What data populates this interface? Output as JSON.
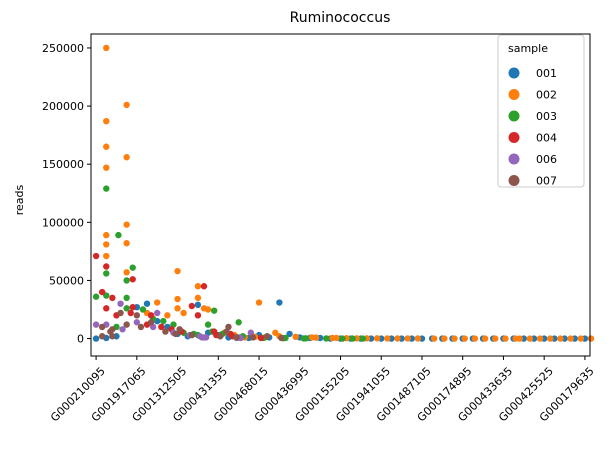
{
  "chart_data": {
    "type": "scatter",
    "style": "swarm",
    "title": "Ruminococcus",
    "xlabel": "",
    "ylabel": "reads",
    "ylim": [
      -15000,
      262000
    ],
    "yticks": [
      0,
      50000,
      100000,
      150000,
      200000,
      250000
    ],
    "ytick_labels": [
      "0",
      "50000",
      "100000",
      "150000",
      "200000",
      "250000"
    ],
    "grid": false,
    "x_category_count": 49,
    "xtick_every": 4,
    "xtick_labels": [
      "G000210095",
      "G001917065",
      "G001312505",
      "G000431355",
      "G000468015",
      "G000436995",
      "G000155205",
      "G001941055",
      "G001487105",
      "G000174895",
      "G000433635",
      "G000425525",
      "G000179635"
    ],
    "legend": {
      "title": "sample",
      "position": "top-right",
      "entries": [
        {
          "name": "001",
          "color": "#1f77b4"
        },
        {
          "name": "002",
          "color": "#ff7f0e"
        },
        {
          "name": "003",
          "color": "#2ca02c"
        },
        {
          "name": "004",
          "color": "#d62728"
        },
        {
          "name": "006",
          "color": "#9467bd"
        },
        {
          "name": "007",
          "color": "#8c564b"
        }
      ]
    },
    "series": [
      {
        "name": "001",
        "color": "#1f77b4",
        "points": [
          [
            0,
            0
          ],
          [
            1,
            500
          ],
          [
            2,
            2000
          ],
          [
            4,
            27000
          ],
          [
            5,
            30000
          ],
          [
            6,
            15000
          ],
          [
            7,
            10000
          ],
          [
            8,
            4000
          ],
          [
            9,
            2000
          ],
          [
            10,
            29000
          ],
          [
            11,
            5000
          ],
          [
            12,
            3000
          ],
          [
            13,
            1000
          ],
          [
            14,
            1000
          ],
          [
            15,
            500
          ],
          [
            16,
            3000
          ],
          [
            17,
            1000
          ],
          [
            18,
            31000
          ],
          [
            19,
            4000
          ],
          [
            20,
            1000
          ],
          [
            21,
            500
          ],
          [
            22,
            500
          ],
          [
            23,
            0
          ],
          [
            24,
            0
          ],
          [
            25,
            0
          ],
          [
            26,
            0
          ],
          [
            27,
            0
          ],
          [
            28,
            0
          ],
          [
            29,
            0
          ],
          [
            30,
            0
          ],
          [
            31,
            0
          ],
          [
            32,
            0
          ],
          [
            33,
            0
          ],
          [
            34,
            0
          ],
          [
            35,
            0
          ],
          [
            36,
            0
          ],
          [
            37,
            0
          ],
          [
            38,
            0
          ],
          [
            39,
            0
          ],
          [
            40,
            0
          ],
          [
            41,
            0
          ],
          [
            42,
            0
          ],
          [
            43,
            0
          ],
          [
            44,
            0
          ],
          [
            45,
            0
          ],
          [
            46,
            0
          ],
          [
            47,
            0
          ],
          [
            48,
            0
          ]
        ]
      },
      {
        "name": "002",
        "color": "#ff7f0e",
        "points": [
          [
            1,
            250000
          ],
          [
            1,
            187000
          ],
          [
            1,
            165000
          ],
          [
            1,
            147000
          ],
          [
            1,
            89000
          ],
          [
            1,
            81000
          ],
          [
            1,
            71000
          ],
          [
            3,
            201000
          ],
          [
            3,
            156000
          ],
          [
            3,
            98000
          ],
          [
            3,
            82000
          ],
          [
            3,
            57000
          ],
          [
            5,
            22000
          ],
          [
            6,
            31000
          ],
          [
            7,
            20000
          ],
          [
            8,
            58000
          ],
          [
            8,
            34000
          ],
          [
            8,
            26000
          ],
          [
            8,
            22000
          ],
          [
            10,
            45000
          ],
          [
            10,
            35000
          ],
          [
            10,
            26000
          ],
          [
            11,
            25000
          ],
          [
            12,
            5000
          ],
          [
            13,
            3000
          ],
          [
            14,
            1000
          ],
          [
            15,
            1500
          ],
          [
            16,
            31000
          ],
          [
            17,
            5000
          ],
          [
            18,
            2000
          ],
          [
            19,
            1500
          ],
          [
            20,
            1000
          ],
          [
            21,
            800
          ],
          [
            22,
            500
          ],
          [
            23,
            500
          ],
          [
            24,
            300
          ],
          [
            25,
            200
          ],
          [
            26,
            200
          ],
          [
            27,
            200
          ],
          [
            28,
            100
          ],
          [
            29,
            100
          ],
          [
            30,
            100
          ],
          [
            31,
            100
          ],
          [
            32,
            0
          ],
          [
            33,
            0
          ],
          [
            34,
            0
          ],
          [
            35,
            0
          ],
          [
            36,
            0
          ],
          [
            37,
            0
          ],
          [
            38,
            0
          ],
          [
            39,
            0
          ],
          [
            40,
            0
          ],
          [
            41,
            0
          ],
          [
            42,
            0
          ],
          [
            43,
            0
          ],
          [
            44,
            0
          ],
          [
            45,
            0
          ],
          [
            46,
            0
          ],
          [
            47,
            0
          ],
          [
            48,
            0
          ]
        ]
      },
      {
        "name": "003",
        "color": "#2ca02c",
        "points": [
          [
            0,
            36000
          ],
          [
            1,
            129000
          ],
          [
            1,
            89000
          ],
          [
            1,
            56000
          ],
          [
            1,
            37000
          ],
          [
            2,
            10000
          ],
          [
            3,
            61000
          ],
          [
            3,
            50000
          ],
          [
            3,
            35000
          ],
          [
            3,
            26000
          ],
          [
            4,
            25000
          ],
          [
            5,
            17000
          ],
          [
            6,
            15000
          ],
          [
            7,
            12000
          ],
          [
            8,
            5000
          ],
          [
            9,
            4000
          ],
          [
            10,
            3000
          ],
          [
            11,
            24000
          ],
          [
            11,
            12000
          ],
          [
            12,
            6000
          ],
          [
            13,
            4000
          ],
          [
            14,
            14000
          ],
          [
            15,
            2000
          ],
          [
            16,
            1000
          ],
          [
            17,
            500
          ],
          [
            18,
            500
          ],
          [
            19,
            300
          ],
          [
            20,
            200
          ],
          [
            21,
            100
          ],
          [
            22,
            100
          ],
          [
            23,
            0
          ],
          [
            24,
            0
          ],
          [
            25,
            0
          ]
        ]
      },
      {
        "name": "004",
        "color": "#d62728",
        "points": [
          [
            0,
            71000
          ],
          [
            0,
            40000
          ],
          [
            1,
            62000
          ],
          [
            1,
            35000
          ],
          [
            1,
            26000
          ],
          [
            2,
            20000
          ],
          [
            3,
            51000
          ],
          [
            3,
            27000
          ],
          [
            4,
            22000
          ],
          [
            5,
            12000
          ],
          [
            6,
            20000
          ],
          [
            7,
            10000
          ],
          [
            8,
            8000
          ],
          [
            9,
            6000
          ],
          [
            10,
            45000
          ],
          [
            10,
            28000
          ],
          [
            10,
            20000
          ],
          [
            11,
            6000
          ],
          [
            12,
            4000
          ],
          [
            13,
            3000
          ],
          [
            14,
            2000
          ],
          [
            15,
            500
          ]
        ]
      },
      {
        "name": "006",
        "color": "#9467bd",
        "points": [
          [
            0,
            12000
          ],
          [
            1,
            12000
          ],
          [
            2,
            8000
          ],
          [
            3,
            30000
          ],
          [
            4,
            14000
          ],
          [
            5,
            10000
          ],
          [
            6,
            22000
          ],
          [
            7,
            5000
          ],
          [
            8,
            3000
          ],
          [
            9,
            2000
          ],
          [
            10,
            1000
          ],
          [
            11,
            1000
          ],
          [
            12,
            1000
          ],
          [
            13,
            500
          ],
          [
            14,
            5000
          ],
          [
            15,
            500
          ]
        ]
      },
      {
        "name": "007",
        "color": "#8c564b",
        "points": [
          [
            0,
            10000
          ],
          [
            0,
            2000
          ],
          [
            1,
            8000
          ],
          [
            1,
            2000
          ],
          [
            2,
            6000
          ],
          [
            3,
            22000
          ],
          [
            3,
            12000
          ],
          [
            4,
            20000
          ],
          [
            5,
            10000
          ],
          [
            6,
            14000
          ],
          [
            7,
            8000
          ],
          [
            8,
            6000
          ],
          [
            9,
            4000
          ],
          [
            10,
            3000
          ],
          [
            11,
            2000
          ],
          [
            12,
            1000
          ],
          [
            13,
            10000
          ],
          [
            14,
            6000
          ],
          [
            15,
            2000
          ],
          [
            16,
            1000
          ],
          [
            17,
            500
          ]
        ]
      }
    ]
  }
}
